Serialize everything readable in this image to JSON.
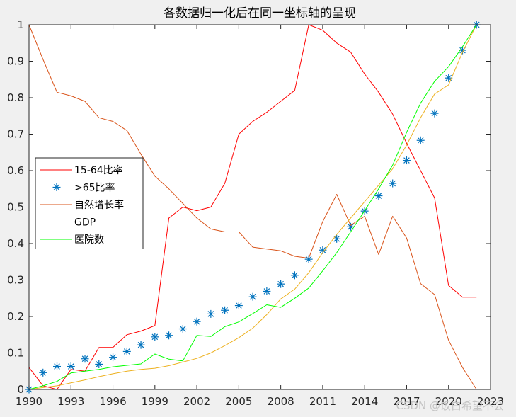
{
  "chart_data": {
    "type": "line",
    "title": "各数据归一化后在同一坐标轴的呈现",
    "xlabel": "",
    "ylabel": "",
    "xlim": [
      1990,
      2023
    ],
    "ylim": [
      0,
      1
    ],
    "xticks": [
      1990,
      1993,
      1996,
      1999,
      2002,
      2005,
      2008,
      2011,
      2014,
      2017,
      2020,
      2023
    ],
    "yticks": [
      0,
      0.1,
      0.2,
      0.3,
      0.4,
      0.5,
      0.6,
      0.7,
      0.8,
      0.9,
      1
    ],
    "x": [
      1990,
      1991,
      1992,
      1993,
      1994,
      1995,
      1996,
      1997,
      1998,
      1999,
      2000,
      2001,
      2002,
      2003,
      2004,
      2005,
      2006,
      2007,
      2008,
      2009,
      2010,
      2011,
      2012,
      2013,
      2014,
      2015,
      2016,
      2017,
      2018,
      2019,
      2020,
      2021,
      2022
    ],
    "grid": false,
    "legend_position": "center-left",
    "series": [
      {
        "name": "15-64比率",
        "style": "line",
        "color": "#ff0000",
        "values": [
          0.06,
          0.01,
          0.0,
          0.055,
          0.05,
          0.115,
          0.115,
          0.15,
          0.16,
          0.175,
          0.47,
          0.5,
          0.49,
          0.5,
          0.565,
          0.7,
          0.735,
          0.76,
          0.79,
          0.82,
          1.0,
          0.985,
          0.95,
          0.925,
          0.865,
          0.815,
          0.755,
          0.675,
          0.6,
          0.525,
          0.285,
          0.253,
          0.253
        ]
      },
      {
        "name": ">65比率",
        "style": "markers",
        "marker": "*",
        "color": "#0072bd",
        "values": [
          0.0,
          0.046,
          0.063,
          0.063,
          0.084,
          0.069,
          0.088,
          0.104,
          0.122,
          0.144,
          0.148,
          0.166,
          0.186,
          0.207,
          0.217,
          0.23,
          0.254,
          0.269,
          0.289,
          0.313,
          0.357,
          0.382,
          0.413,
          0.446,
          0.489,
          0.531,
          0.565,
          0.628,
          0.683,
          0.757,
          0.854,
          0.93,
          1.0
        ]
      },
      {
        "name": "自然增长率",
        "style": "line",
        "color": "#d95319",
        "values": [
          1.0,
          0.905,
          0.815,
          0.805,
          0.79,
          0.745,
          0.735,
          0.71,
          0.645,
          0.585,
          0.55,
          0.51,
          0.47,
          0.44,
          0.432,
          0.432,
          0.39,
          0.385,
          0.38,
          0.365,
          0.36,
          0.46,
          0.535,
          0.45,
          0.475,
          0.37,
          0.475,
          0.415,
          0.29,
          0.26,
          0.135,
          0.06,
          0.0
        ]
      },
      {
        "name": "GDP",
        "style": "line",
        "color": "#edb120",
        "values": [
          0.0,
          0.005,
          0.01,
          0.018,
          0.026,
          0.035,
          0.043,
          0.05,
          0.055,
          0.058,
          0.065,
          0.075,
          0.085,
          0.1,
          0.12,
          0.142,
          0.168,
          0.205,
          0.248,
          0.275,
          0.32,
          0.375,
          0.425,
          0.47,
          0.515,
          0.56,
          0.605,
          0.67,
          0.745,
          0.81,
          0.835,
          0.925,
          1.0
        ]
      },
      {
        "name": "医院数",
        "style": "line",
        "color": "#00ff00",
        "values": [
          0.0,
          0.01,
          0.022,
          0.045,
          0.05,
          0.055,
          0.062,
          0.066,
          0.07,
          0.097,
          0.083,
          0.078,
          0.148,
          0.145,
          0.172,
          0.185,
          0.208,
          0.232,
          0.225,
          0.25,
          0.278,
          0.325,
          0.375,
          0.432,
          0.49,
          0.55,
          0.615,
          0.705,
          0.785,
          0.845,
          0.885,
          0.94,
          1.0
        ]
      }
    ]
  },
  "watermark": "CSDN @饭白希望不会"
}
